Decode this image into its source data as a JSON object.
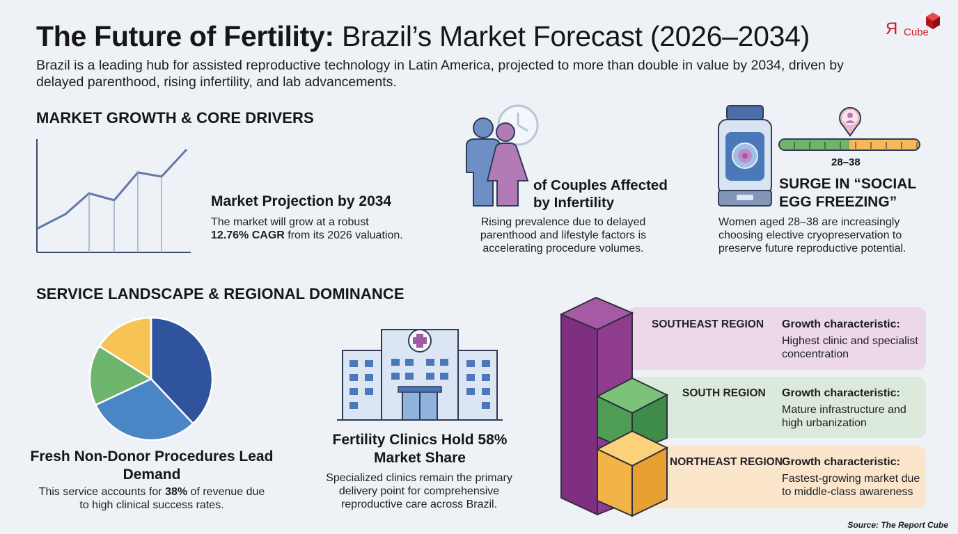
{
  "header": {
    "title_bold": "The Future of Fertility:",
    "title_rest": "Brazil’s Market Forecast (2026–2034)",
    "subtitle": "Brazil is a leading hub for assisted reproductive technology in Latin America, projected to more than double in value by 2034, driven by delayed parenthood, rising infertility, and lab advancements.",
    "logo_mark": "Я",
    "logo_text": "Cube"
  },
  "growth_section": {
    "heading": "MARKET GROWTH & CORE DRIVERS",
    "projection": {
      "title": "Market Projection by 2034",
      "text_before": "The market will grow at a robust",
      "cagr": "12.76% CAGR",
      "text_after": " from its 2026 valuation."
    },
    "couples": {
      "title": "of Couples Affected by Infertility",
      "text": "Rising prevalence due to delayed parenthood and lifestyle factors is accelerating procedure volumes."
    },
    "egg_freezing": {
      "age_range": "28–38",
      "title": "SURGE IN “SOCIAL EGG FREEZING”",
      "text": "Women aged 28–38 are increasingly choosing elective cryopreservation to preserve future reproductive potential."
    }
  },
  "service_section": {
    "heading": "SERVICE LANDSCAPE & REGIONAL DOMINANCE",
    "pie": {
      "title": "Fresh Non-Donor Procedures Lead Demand",
      "text_before": "This service accounts for ",
      "share": "38%",
      "text_after": " of revenue due to high clinical success rates.",
      "slices": [
        {
          "value": 0.38,
          "color": "#2f539c"
        },
        {
          "value": 0.3,
          "color": "#4a86c6"
        },
        {
          "value": 0.16,
          "color": "#6db56d"
        },
        {
          "value": 0.16,
          "color": "#f7c355"
        }
      ]
    },
    "clinics": {
      "title": "Fertility Clinics Hold 58% Market Share",
      "text": "Specialized clinics remain the primary delivery point for comprehensive reproductive care across Brazil."
    },
    "regions": [
      {
        "name": "SOUTHEAST REGION",
        "label": "Growth characteristic:",
        "text": "Highest clinic and specialist concentration",
        "color": "#ecd8e6"
      },
      {
        "name": "SOUTH REGION",
        "label": "Growth characteristic:",
        "text": "Mature infrastructure and high urbanization",
        "color": "#dceadb"
      },
      {
        "name": "NORTHEAST REGION",
        "label": "Growth characteristic:",
        "text": "Fastest-growing market due to middle-class awareness",
        "color": "#fbe6cc"
      }
    ]
  },
  "footer": {
    "source": "Source: The Report Cube"
  }
}
